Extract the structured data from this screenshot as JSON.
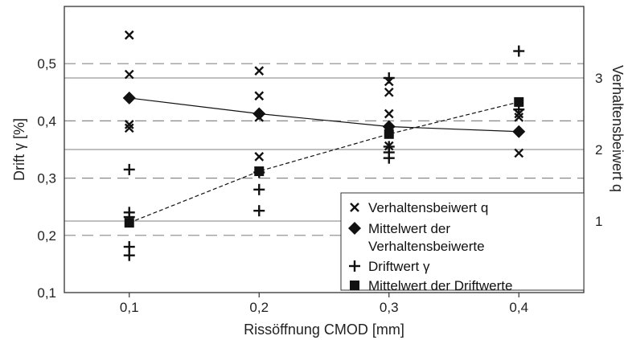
{
  "chart_data": {
    "type": "scatter",
    "xlabel": "Rissöffnung CMOD [mm]",
    "ylabel": "Drift γ [%]",
    "y2label": "Verhaltensbeiwert q",
    "x_ticks": [
      "0,1",
      "0,2",
      "0,3",
      "0,4"
    ],
    "x_tick_values": [
      0.1,
      0.2,
      0.3,
      0.4
    ],
    "y_ticks": [
      "0,1",
      "0,2",
      "0,3",
      "0,4",
      "0,5"
    ],
    "y_tick_values": [
      0.1,
      0.2,
      0.3,
      0.4,
      0.5
    ],
    "y2_ticks": [
      "1",
      "2",
      "3"
    ],
    "y2_tick_values": [
      1,
      2,
      3
    ],
    "xlim": [
      0.05,
      0.45
    ],
    "ylim": [
      0.1,
      0.6
    ],
    "y2lim": [
      0,
      4
    ],
    "legend_position": "bottom-right",
    "grid": "horizontal dashed lines at left-axis ticks, solid lines at right-axis ticks",
    "series": [
      {
        "name": "Verhaltensbeiwert q",
        "axis": "right",
        "marker": "x",
        "points": [
          {
            "x": 0.1,
            "y": 3.6
          },
          {
            "x": 0.1,
            "y": 3.05
          },
          {
            "x": 0.1,
            "y": 2.35
          },
          {
            "x": 0.1,
            "y": 2.3
          },
          {
            "x": 0.2,
            "y": 3.1
          },
          {
            "x": 0.2,
            "y": 2.75
          },
          {
            "x": 0.2,
            "y": 2.45
          },
          {
            "x": 0.2,
            "y": 1.9
          },
          {
            "x": 0.3,
            "y": 2.95
          },
          {
            "x": 0.3,
            "y": 2.8
          },
          {
            "x": 0.3,
            "y": 2.5
          },
          {
            "x": 0.3,
            "y": 2.05
          },
          {
            "x": 0.4,
            "y": 2.5
          },
          {
            "x": 0.4,
            "y": 2.45
          },
          {
            "x": 0.4,
            "y": 1.95
          }
        ]
      },
      {
        "name": "Mittelwert der Verhaltensbeiwerte",
        "axis": "right",
        "marker": "diamond",
        "line": "solid",
        "points": [
          {
            "x": 0.1,
            "y": 2.72
          },
          {
            "x": 0.2,
            "y": 2.5
          },
          {
            "x": 0.3,
            "y": 2.32
          },
          {
            "x": 0.4,
            "y": 2.25
          }
        ]
      },
      {
        "name": "Driftwert γ",
        "axis": "left",
        "marker": "plus",
        "points": [
          {
            "x": 0.1,
            "y": 0.315
          },
          {
            "x": 0.1,
            "y": 0.24
          },
          {
            "x": 0.1,
            "y": 0.232
          },
          {
            "x": 0.1,
            "y": 0.18
          },
          {
            "x": 0.1,
            "y": 0.165
          },
          {
            "x": 0.2,
            "y": 0.31
          },
          {
            "x": 0.2,
            "y": 0.28
          },
          {
            "x": 0.2,
            "y": 0.243
          },
          {
            "x": 0.3,
            "y": 0.475
          },
          {
            "x": 0.3,
            "y": 0.355
          },
          {
            "x": 0.3,
            "y": 0.345
          },
          {
            "x": 0.3,
            "y": 0.335
          },
          {
            "x": 0.4,
            "y": 0.522
          },
          {
            "x": 0.4,
            "y": 0.42
          }
        ]
      },
      {
        "name": "Mittelwert der Driftwerte",
        "axis": "left",
        "marker": "square",
        "line": "dashed",
        "points": [
          {
            "x": 0.1,
            "y": 0.222
          },
          {
            "x": 0.2,
            "y": 0.312
          },
          {
            "x": 0.3,
            "y": 0.377
          },
          {
            "x": 0.4,
            "y": 0.433
          }
        ]
      }
    ],
    "legend": [
      "Verhaltensbeiwert q",
      "Mittelwert der",
      "Verhaltensbeiwerte",
      "Driftwert γ",
      "Mittelwert der Driftwerte"
    ]
  }
}
